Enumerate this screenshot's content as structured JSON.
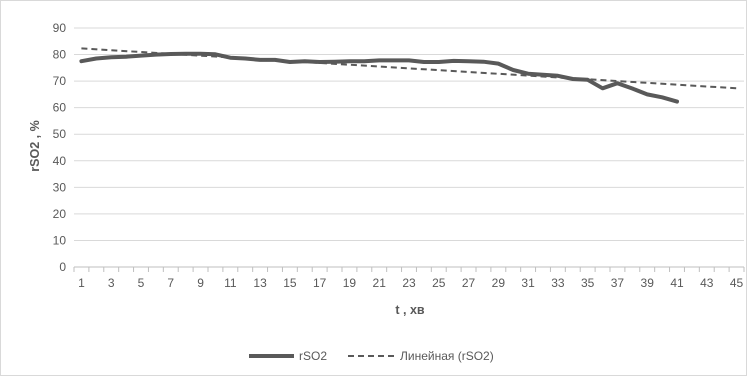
{
  "chart_data": {
    "type": "line",
    "title": "",
    "xlabel": "t , хв",
    "ylabel": "rSO2 , %",
    "x_range": [
      1,
      45
    ],
    "x_tick_labels": [
      "1",
      "3",
      "5",
      "7",
      "9",
      "11",
      "13",
      "15",
      "17",
      "19",
      "21",
      "23",
      "25",
      "27",
      "29",
      "31",
      "33",
      "35",
      "37",
      "39",
      "41",
      "43",
      "45"
    ],
    "ylim": [
      0,
      90
    ],
    "y_tick_labels": [
      "0",
      "10",
      "20",
      "30",
      "40",
      "50",
      "60",
      "70",
      "80",
      "90"
    ],
    "grid": "horizontal",
    "legend_position": "bottom",
    "series": [
      {
        "name": "rSO2",
        "style": "solid",
        "color": "#595959",
        "x": [
          1,
          2,
          3,
          4,
          5,
          6,
          7,
          8,
          9,
          10,
          11,
          12,
          13,
          14,
          15,
          16,
          17,
          18,
          19,
          20,
          21,
          22,
          23,
          24,
          25,
          26,
          27,
          28,
          29,
          30,
          31,
          32,
          33,
          34,
          35,
          36,
          37,
          38,
          39,
          40,
          41
        ],
        "values": [
          77.5,
          78.5,
          79,
          79.2,
          79.6,
          80,
          80.2,
          80.3,
          80.3,
          80.1,
          78.8,
          78.5,
          78,
          78,
          77.2,
          77.5,
          77.2,
          77.3,
          77.5,
          77.5,
          77.8,
          77.8,
          77.8,
          77.2,
          77.2,
          77.6,
          77.5,
          77.3,
          76.6,
          74.2,
          72.8,
          72.4,
          72,
          70.8,
          70.5,
          67.3,
          69.2,
          67.2,
          65,
          63.9,
          62.3
        ]
      },
      {
        "name": "Линейная (rSO2)",
        "style": "dashed",
        "color": "#595959",
        "x": [
          1,
          45
        ],
        "values": [
          82.3,
          67.3
        ]
      }
    ]
  }
}
